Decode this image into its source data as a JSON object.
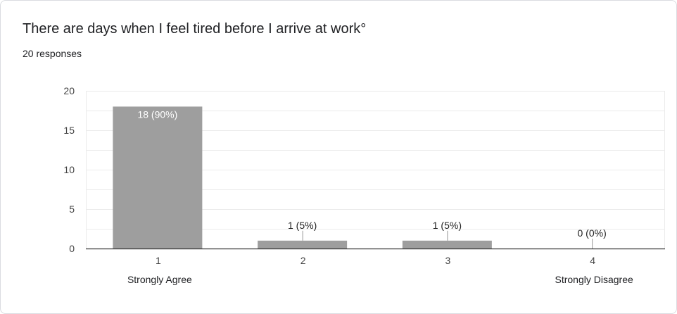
{
  "title": "There are days when I feel tired before I arrive at work°",
  "subtitle": "20 responses",
  "colors": {
    "bar": "#9e9e9e",
    "grid": "#ebebeb",
    "axis": "#333333",
    "label_inside": "#ffffff",
    "label_outside": "#222222"
  },
  "chart_data": {
    "type": "bar",
    "title": "There are days when I feel tired before I arrive at work°",
    "categories": [
      "1",
      "2",
      "3",
      "4"
    ],
    "category_descriptions": [
      "Strongly Agree",
      "",
      "",
      "Strongly Disagree"
    ],
    "values": [
      18,
      1,
      1,
      0
    ],
    "data_labels": [
      "18 (90%)",
      "1 (5%)",
      "1 (5%)",
      "0 (0%)"
    ],
    "yticks": [
      "0",
      "5",
      "10",
      "15",
      "20"
    ],
    "ylim": [
      0,
      20
    ],
    "grid": true,
    "xlabel": "",
    "ylabel": ""
  }
}
